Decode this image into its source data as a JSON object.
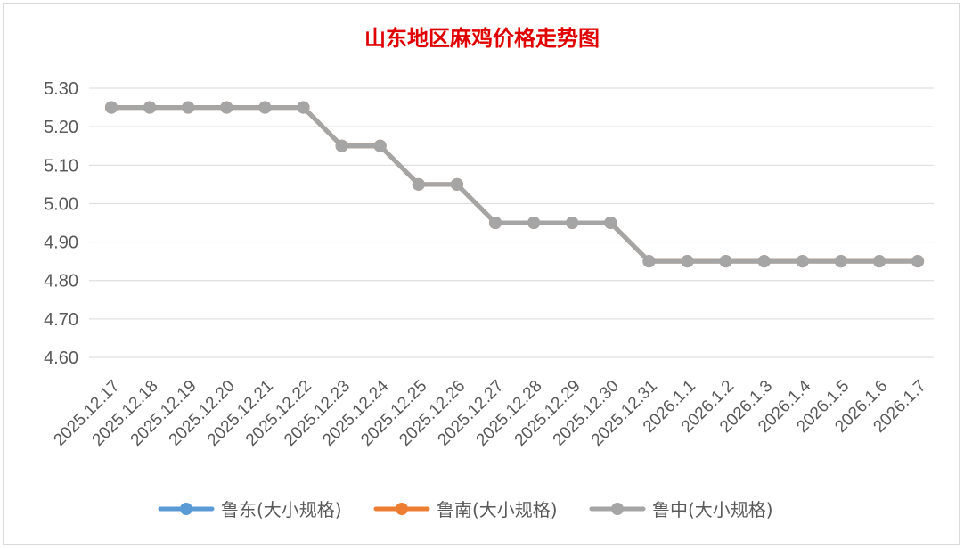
{
  "chart_data": {
    "type": "line",
    "title": "山东地区麻鸡价格走势图",
    "title_color": "#e00000",
    "x": [
      "2025.12.17",
      "2025.12.18",
      "2025.12.19",
      "2025.12.20",
      "2025.12.21",
      "2025.12.22",
      "2025.12.23",
      "2025.12.24",
      "2025.12.25",
      "2025.12.26",
      "2025.12.27",
      "2025.12.28",
      "2025.12.29",
      "2025.12.30",
      "2025.12.31",
      "2026.1.1",
      "2026.1.2",
      "2026.1.3",
      "2026.1.4",
      "2026.1.5",
      "2026.1.6",
      "2026.1.7"
    ],
    "ylim": [
      4.6,
      5.3
    ],
    "yticks": [
      "4.60",
      "4.70",
      "4.80",
      "4.90",
      "5.00",
      "5.10",
      "5.20",
      "5.30"
    ],
    "grid": true,
    "legend_position": "bottom",
    "series": [
      {
        "name": "鲁东(大小规格)",
        "color": "#5b9bd5",
        "values": [
          5.25,
          5.25,
          5.25,
          5.25,
          5.25,
          5.25,
          5.15,
          5.15,
          5.05,
          5.05,
          4.95,
          4.95,
          4.95,
          4.95,
          4.85,
          4.85,
          4.85,
          4.85,
          4.85,
          4.85,
          4.85,
          4.85
        ]
      },
      {
        "name": "鲁南(大小规格)",
        "color": "#ed7d31",
        "values": [
          5.25,
          5.25,
          5.25,
          5.25,
          5.25,
          5.25,
          5.15,
          5.15,
          5.05,
          5.05,
          4.95,
          4.95,
          4.95,
          4.95,
          4.85,
          4.85,
          4.85,
          4.85,
          4.85,
          4.85,
          4.85,
          4.85
        ]
      },
      {
        "name": "鲁中(大小规格)",
        "color": "#a5a5a5",
        "values": [
          5.25,
          5.25,
          5.25,
          5.25,
          5.25,
          5.25,
          5.15,
          5.15,
          5.05,
          5.05,
          4.95,
          4.95,
          4.95,
          4.95,
          4.85,
          4.85,
          4.85,
          4.85,
          4.85,
          4.85,
          4.85,
          4.85
        ]
      }
    ]
  }
}
